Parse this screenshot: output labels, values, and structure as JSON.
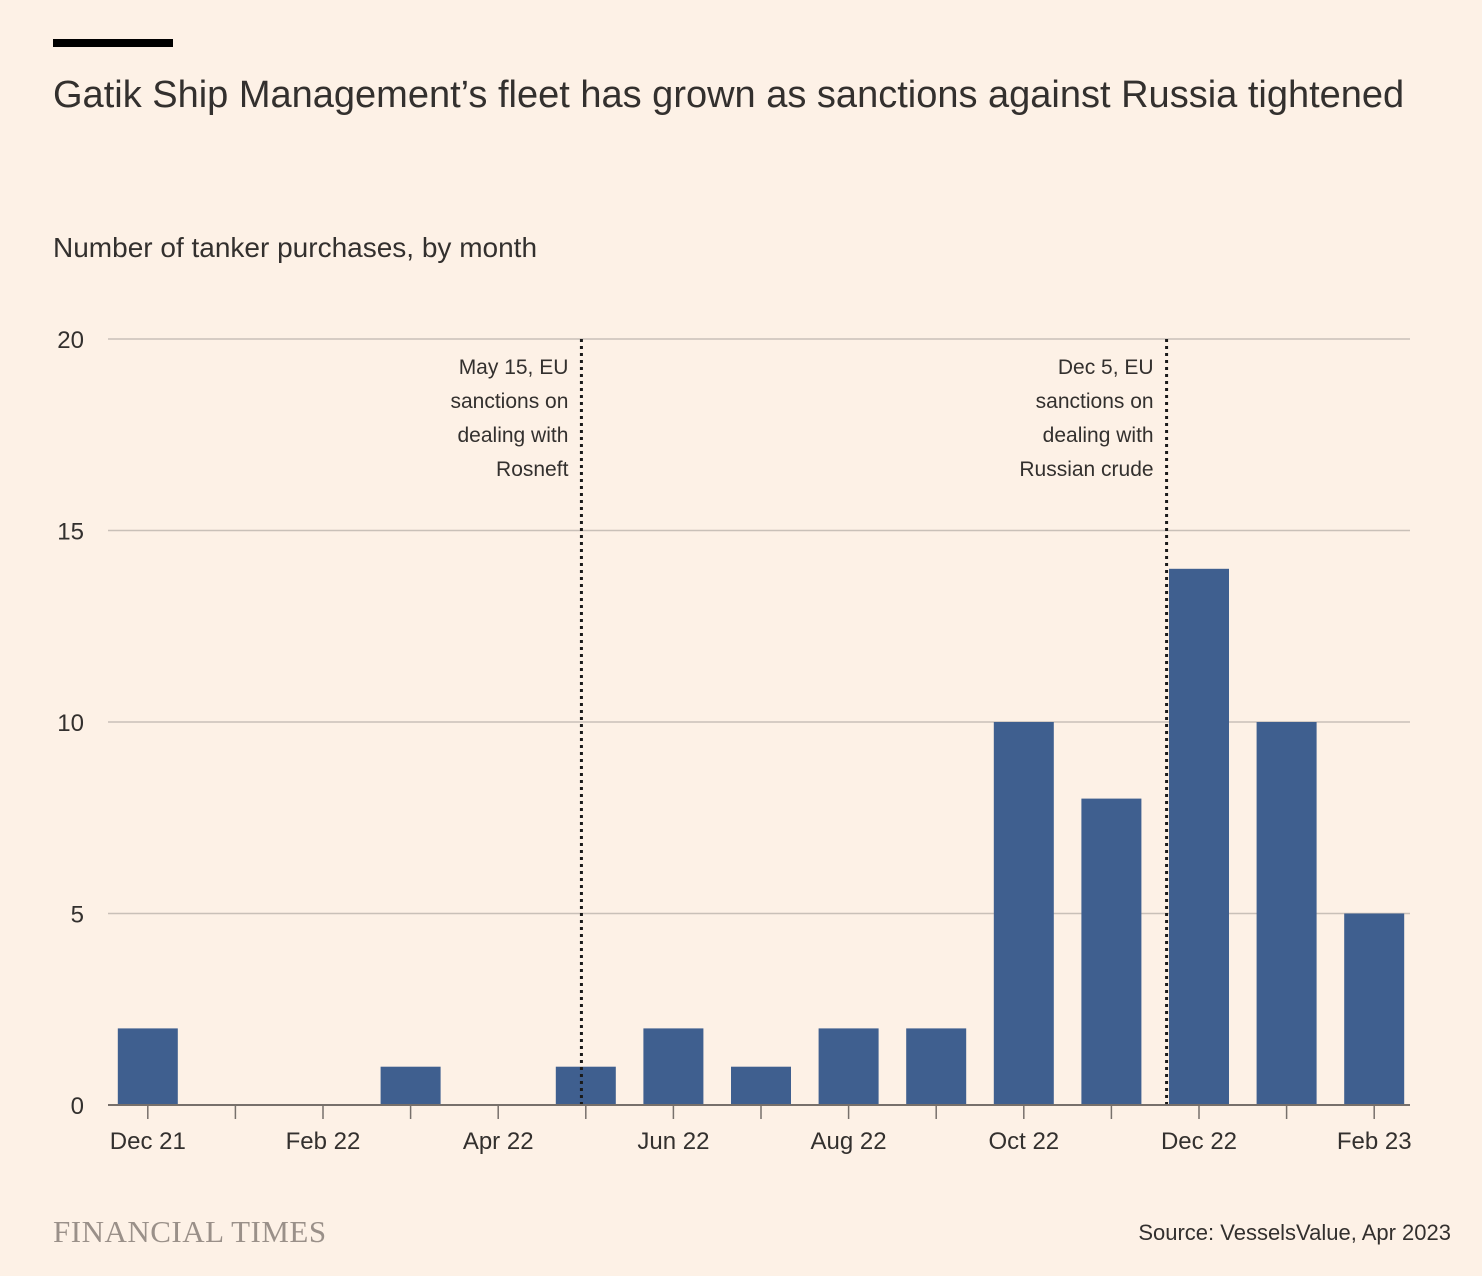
{
  "title": "Gatik Ship Management’s fleet has grown as sanctions against Russia tightened",
  "subtitle": "Number of tanker purchases, by month",
  "brand": "FINANCIAL TIMES",
  "source": "Source: VesselsValue, Apr 2023",
  "colors": {
    "background": "#fdf1e6",
    "bar": "#3f5f8f",
    "grid": "#c9c0b8",
    "axis": "#77706b",
    "text": "#33302e"
  },
  "chart_data": {
    "type": "bar",
    "title": "Gatik Ship Management’s fleet has grown as sanctions against Russia tightened",
    "subtitle": "Number of tanker purchases, by month",
    "xlabel": "",
    "ylabel": "",
    "ylim": [
      0,
      20
    ],
    "yticks": [
      0,
      5,
      10,
      15,
      20
    ],
    "grid": true,
    "categories": [
      "Dec 21",
      "Jan 22",
      "Feb 22",
      "Mar 22",
      "Apr 22",
      "May 22",
      "Jun 22",
      "Jul 22",
      "Aug 22",
      "Sep 22",
      "Oct 22",
      "Nov 22",
      "Dec 22",
      "Jan 23",
      "Feb 23"
    ],
    "values": [
      2,
      0,
      0,
      1,
      0,
      1,
      2,
      1,
      2,
      2,
      10,
      8,
      14,
      10,
      5
    ],
    "xtick_labels": [
      {
        "category": "Dec 21",
        "label": "Dec 21"
      },
      {
        "category": "Feb 22",
        "label": "Feb 22"
      },
      {
        "category": "Apr 22",
        "label": "Apr 22"
      },
      {
        "category": "Jun 22",
        "label": "Jun 22"
      },
      {
        "category": "Aug 22",
        "label": "Aug 22"
      },
      {
        "category": "Oct 22",
        "label": "Oct 22"
      },
      {
        "category": "Dec 22",
        "label": "Dec 22"
      },
      {
        "category": "Feb 23",
        "label": "Feb 23"
      }
    ],
    "annotations": [
      {
        "date": "2022-05-15",
        "category": "May 22",
        "day_fraction": 0.45,
        "lines": [
          "May 15, EU",
          "sanctions on",
          "dealing with",
          "Rosneft"
        ]
      },
      {
        "date": "2022-12-05",
        "category": "Dec 22",
        "day_fraction": 0.13,
        "lines": [
          "Dec 5, EU",
          "sanctions on",
          "dealing with",
          "Russian crude"
        ]
      }
    ]
  }
}
